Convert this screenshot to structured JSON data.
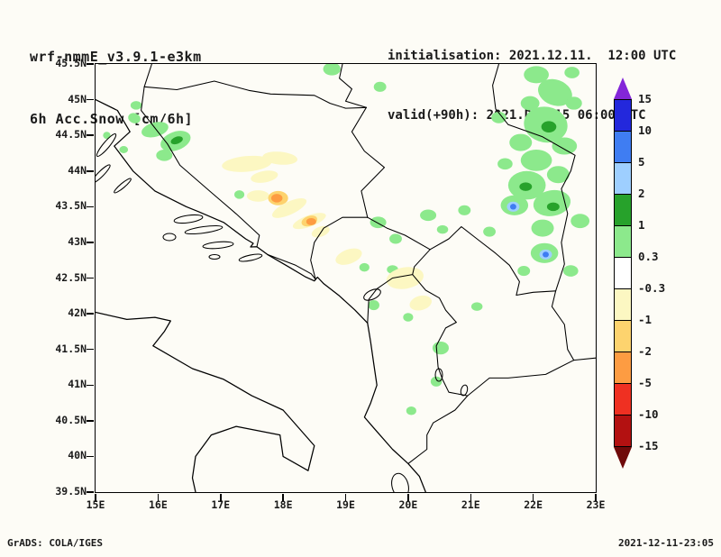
{
  "header": {
    "model_title": "wrf-nmmE_v3.9.1-e3km",
    "field_title": "6h Acc.Snow [cm/6h]",
    "init_line": "initialisation: 2021.12.11.  12:00 UTC",
    "valid_line": "valid(+90h): 2021.DEC.15 06:00 UTC"
  },
  "footer": {
    "credit": "GrADS: COLA/IGES",
    "timestamp": "2021-12-11-23:05"
  },
  "map": {
    "lat_labels": [
      "45.5N",
      "45N",
      "44.5N",
      "44N",
      "43.5N",
      "43N",
      "42.5N",
      "42N",
      "41.5N",
      "41N",
      "40.5N",
      "40N",
      "39.5N"
    ],
    "lon_labels": [
      "15E",
      "16E",
      "17E",
      "18E",
      "19E",
      "20E",
      "21E",
      "22E",
      "23E"
    ],
    "lon_range": [
      15,
      23
    ],
    "lat_range": [
      39.5,
      45.5
    ],
    "patches": [
      [
        18.78,
        45.43,
        0.14,
        0.09,
        0,
        "p03"
      ],
      [
        19.55,
        45.18,
        0.1,
        0.07,
        0,
        "p03"
      ],
      [
        22.05,
        45.35,
        0.2,
        0.12,
        0,
        "p03"
      ],
      [
        22.62,
        45.38,
        0.12,
        0.08,
        0,
        "p03"
      ],
      [
        22.35,
        45.1,
        0.28,
        0.18,
        20,
        "p03"
      ],
      [
        21.95,
        44.95,
        0.15,
        0.1,
        0,
        "p03"
      ],
      [
        22.65,
        44.95,
        0.13,
        0.09,
        0,
        "p03"
      ],
      [
        22.2,
        44.65,
        0.35,
        0.25,
        10,
        "p03"
      ],
      [
        22.25,
        44.62,
        0.12,
        0.08,
        0,
        "p1"
      ],
      [
        21.45,
        44.75,
        0.12,
        0.08,
        0,
        "p03"
      ],
      [
        21.8,
        44.4,
        0.18,
        0.12,
        0,
        "p03"
      ],
      [
        22.5,
        44.35,
        0.2,
        0.12,
        0,
        "p03"
      ],
      [
        22.05,
        44.15,
        0.25,
        0.15,
        0,
        "p03"
      ],
      [
        21.55,
        44.1,
        0.12,
        0.08,
        0,
        "p03"
      ],
      [
        22.4,
        43.95,
        0.18,
        0.12,
        0,
        "p03"
      ],
      [
        21.9,
        43.8,
        0.3,
        0.2,
        0,
        "p03"
      ],
      [
        21.88,
        43.78,
        0.1,
        0.06,
        0,
        "p1"
      ],
      [
        21.7,
        43.52,
        0.22,
        0.14,
        0,
        "p03"
      ],
      [
        21.68,
        43.5,
        0.1,
        0.07,
        0,
        "p2"
      ],
      [
        21.68,
        43.5,
        0.05,
        0.04,
        0,
        "p5"
      ],
      [
        22.3,
        43.55,
        0.3,
        0.18,
        -10,
        "p03"
      ],
      [
        22.32,
        43.5,
        0.1,
        0.06,
        0,
        "p1"
      ],
      [
        22.75,
        43.3,
        0.15,
        0.1,
        0,
        "p03"
      ],
      [
        22.15,
        43.2,
        0.18,
        0.12,
        0,
        "p03"
      ],
      [
        21.3,
        43.15,
        0.1,
        0.07,
        0,
        "p03"
      ],
      [
        20.9,
        43.45,
        0.1,
        0.07,
        0,
        "p03"
      ],
      [
        22.18,
        42.85,
        0.22,
        0.14,
        0,
        "p03"
      ],
      [
        22.2,
        42.83,
        0.1,
        0.07,
        0,
        "p2"
      ],
      [
        22.2,
        42.83,
        0.05,
        0.04,
        0,
        "p5"
      ],
      [
        22.6,
        42.6,
        0.12,
        0.08,
        0,
        "p03"
      ],
      [
        21.85,
        42.6,
        0.1,
        0.07,
        0,
        "p03"
      ],
      [
        21.1,
        42.1,
        0.09,
        0.06,
        0,
        "p03"
      ],
      [
        15.65,
        44.92,
        0.09,
        0.06,
        0,
        "p03"
      ],
      [
        15.62,
        44.74,
        0.1,
        0.07,
        20,
        "p03"
      ],
      [
        15.95,
        44.58,
        0.22,
        0.1,
        -15,
        "p03"
      ],
      [
        16.28,
        44.42,
        0.25,
        0.13,
        -20,
        "p03"
      ],
      [
        16.3,
        44.43,
        0.1,
        0.05,
        -20,
        "p1"
      ],
      [
        16.1,
        44.22,
        0.13,
        0.08,
        0,
        "p03"
      ],
      [
        15.45,
        44.3,
        0.07,
        0.05,
        0,
        "p03"
      ],
      [
        15.18,
        44.5,
        0.06,
        0.05,
        0,
        "p03"
      ],
      [
        17.3,
        43.67,
        0.08,
        0.06,
        0,
        "p03"
      ],
      [
        19.52,
        43.28,
        0.13,
        0.08,
        0,
        "p03"
      ],
      [
        19.8,
        43.05,
        0.1,
        0.07,
        0,
        "p03"
      ],
      [
        20.32,
        43.38,
        0.13,
        0.08,
        0,
        "p03"
      ],
      [
        20.55,
        43.18,
        0.09,
        0.06,
        0,
        "p03"
      ],
      [
        19.3,
        42.65,
        0.08,
        0.06,
        0,
        "p03"
      ],
      [
        19.75,
        42.62,
        0.09,
        0.06,
        0,
        "p03"
      ],
      [
        19.45,
        42.12,
        0.09,
        0.07,
        0,
        "p03"
      ],
      [
        20.0,
        41.95,
        0.08,
        0.06,
        0,
        "p03"
      ],
      [
        20.52,
        41.52,
        0.13,
        0.09,
        0,
        "p03"
      ],
      [
        20.45,
        41.05,
        0.09,
        0.07,
        0,
        "p03"
      ],
      [
        20.05,
        40.64,
        0.08,
        0.06,
        0,
        "p03"
      ],
      [
        17.42,
        44.1,
        0.4,
        0.11,
        -5,
        "m03"
      ],
      [
        17.95,
        44.18,
        0.28,
        0.09,
        5,
        "m03"
      ],
      [
        17.7,
        43.92,
        0.22,
        0.08,
        -10,
        "m03"
      ],
      [
        17.6,
        43.65,
        0.18,
        0.08,
        0,
        "m03"
      ],
      [
        17.92,
        43.62,
        0.16,
        0.1,
        0,
        "m1"
      ],
      [
        17.9,
        43.62,
        0.09,
        0.06,
        0,
        "m2"
      ],
      [
        18.1,
        43.48,
        0.3,
        0.09,
        -25,
        "m03"
      ],
      [
        18.42,
        43.3,
        0.28,
        0.08,
        -20,
        "m03"
      ],
      [
        18.42,
        43.3,
        0.13,
        0.07,
        -20,
        "m1"
      ],
      [
        18.45,
        43.29,
        0.08,
        0.05,
        0,
        "m2"
      ],
      [
        18.6,
        43.15,
        0.15,
        0.07,
        -20,
        "m03"
      ],
      [
        19.05,
        42.8,
        0.22,
        0.1,
        -20,
        "m03"
      ],
      [
        19.95,
        42.5,
        0.3,
        0.15,
        -10,
        "m03"
      ],
      [
        20.2,
        42.15,
        0.18,
        0.1,
        -15,
        "m03"
      ]
    ]
  },
  "colorbar": {
    "labels": [
      "15",
      "10",
      "5",
      "2",
      "1",
      "0.3",
      "-0.3",
      "-1",
      "-2",
      "-5",
      "-10",
      "-15"
    ],
    "segment_colors": [
      "#2328dc",
      "#3f7df2",
      "#9ecfff",
      "#27a22b",
      "#8ce98c",
      "#ffffff",
      "#fcf7c2",
      "#fdd36e",
      "#fd9c42",
      "#ef3022",
      "#b31111"
    ],
    "arrow_top_color": "#8326d8",
    "arrow_bottom_color": "#6f0a0a",
    "palette": {
      "p03": "#8ce98c",
      "p1": "#27a22b",
      "p2": "#9ecfff",
      "p5": "#3f7df2",
      "m03": "#fcf7c2",
      "m1": "#fdd36e",
      "m2": "#fd9c42"
    }
  }
}
